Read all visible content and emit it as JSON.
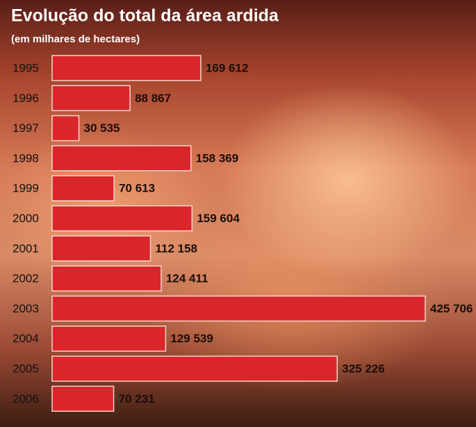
{
  "chart_data": {
    "type": "bar",
    "orientation": "horizontal",
    "title": "Evolução do total da área ardida",
    "subtitle": "(em milhares de hectares)",
    "categories": [
      "1995",
      "1996",
      "1997",
      "1998",
      "1999",
      "2000",
      "2001",
      "2002",
      "2003",
      "2004",
      "2005",
      "2006"
    ],
    "values": [
      169612,
      88867,
      30535,
      158369,
      70613,
      159604,
      112158,
      124411,
      425706,
      129539,
      325226,
      70231
    ],
    "value_labels": [
      "169 612",
      "88 867",
      "30 535",
      "158 369",
      "70 613",
      "159 604",
      "112 158",
      "124 411",
      "425 706",
      "129 539",
      "325 226",
      "70 231"
    ],
    "color": "#d9262b"
  }
}
